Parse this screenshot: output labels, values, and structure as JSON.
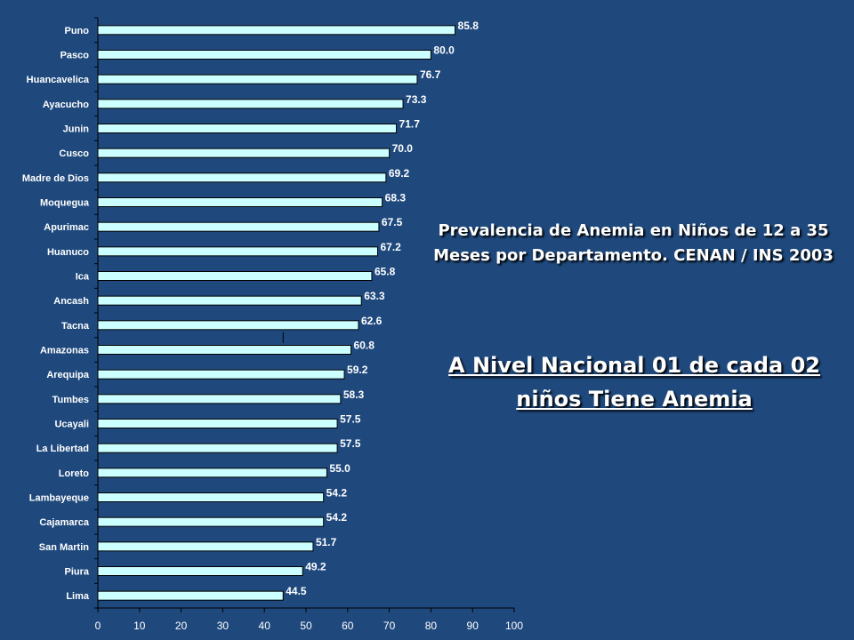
{
  "colors": {
    "background": "#1F497D",
    "bar_fill": "#CCFFFF",
    "bar_stroke": "#000000",
    "text": "#FFFFFF"
  },
  "annotation": {
    "title": "Prevalencia de Anemia en Niños de 12 a 35 Meses por Departamento. CENAN / INS 2003",
    "headline": "A Nivel Nacional 01 de cada 02 niños Tiene Anemia"
  },
  "chart_data": {
    "type": "bar",
    "orientation": "horizontal",
    "title": "Prevalencia de Anemia en Niños de 12 a 35 Meses por Departamento. CENAN / INS 2003",
    "xlabel": "",
    "ylabel": "",
    "xlim": [
      0,
      100
    ],
    "x_ticks": [
      "0",
      "10",
      "20",
      "30",
      "40",
      "50",
      "60",
      "70",
      "80",
      "90",
      "100"
    ],
    "grid": false,
    "categories": [
      "Puno",
      "Pasco",
      "Huancavelica",
      "Ayacucho",
      "Junin",
      "Cusco",
      "Madre de Dios",
      "Moquegua",
      "Apurimac",
      "Huanuco",
      "Ica",
      "Ancash",
      "Tacna",
      "Amazonas",
      "Arequipa",
      "Tumbes",
      "Ucayali",
      "La Libertad",
      "Loreto",
      "Lambayeque",
      "Cajamarca",
      "San Martin",
      "Piura",
      "Lima"
    ],
    "values": [
      85.8,
      80.0,
      76.7,
      73.3,
      71.7,
      70.0,
      69.2,
      68.3,
      67.5,
      67.2,
      65.8,
      63.3,
      62.6,
      60.8,
      59.2,
      58.3,
      57.5,
      57.5,
      55.0,
      54.2,
      54.2,
      51.7,
      49.2,
      44.5
    ],
    "value_labels": [
      "85.8",
      "80.0",
      "76.7",
      "73.3",
      "71.7",
      "70.0",
      "69.2",
      "68.3",
      "67.5",
      "67.2",
      "65.8",
      "63.3",
      "62.6",
      "60.8",
      "59.2",
      "58.3",
      "57.5",
      "57.5",
      "55.0",
      "54.2",
      "54.2",
      "51.7",
      "49.2",
      "44.5"
    ],
    "reference_line": 44.5
  }
}
